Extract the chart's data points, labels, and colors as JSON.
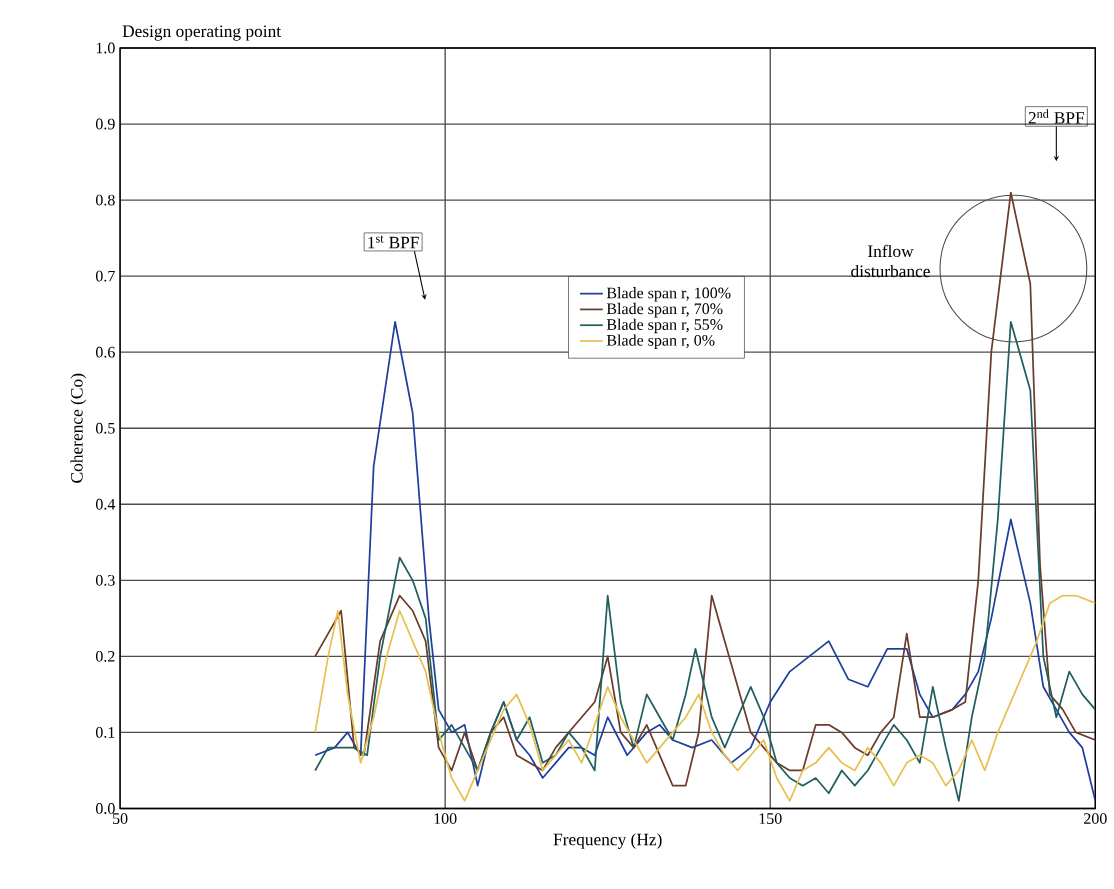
{
  "chart_data": {
    "type": "line",
    "title": "Design operating point",
    "xlabel": "Frequency (Hz)",
    "ylabel": "Coherence (Co)",
    "xlim": [
      50,
      200
    ],
    "xticks": [
      50,
      100,
      150,
      200
    ],
    "ylim": [
      0,
      1
    ],
    "yticks": [
      {
        "value": 0,
        "label": "0.0"
      },
      0.1,
      0.2,
      0.3,
      0.4,
      0.5,
      0.6,
      0.7,
      0.8,
      0.9,
      {
        "value": 1,
        "label": "1.0"
      }
    ],
    "grid": true,
    "legend": "top",
    "line_style": "solid",
    "marker": "none",
    "annotations": [
      "1$^{st}$ BPF",
      "2$^{nd}$ BPF",
      "Inflow disturbance"
    ],
    "series": [
      {
        "name": "Blade span r, 100%",
        "color": "#1f3f9f",
        "x": [
          80,
          83,
          85,
          87,
          89,
          92.3,
          95,
          97.5,
          99,
          101,
          103,
          105,
          107,
          109,
          111,
          113,
          115,
          117,
          119,
          121,
          123,
          125,
          128,
          131,
          133,
          135,
          138,
          141,
          144,
          147,
          150,
          153,
          156,
          159,
          162,
          165,
          168,
          171,
          173,
          175,
          178,
          180,
          182,
          184,
          187,
          190,
          192,
          194,
          196,
          198,
          200
        ],
        "values": [
          0.07,
          0.08,
          0.1,
          0.07,
          0.45,
          0.64,
          0.52,
          0.25,
          0.13,
          0.1,
          0.11,
          0.03,
          0.1,
          0.14,
          0.09,
          0.07,
          0.04,
          0.06,
          0.08,
          0.08,
          0.07,
          0.12,
          0.07,
          0.1,
          0.11,
          0.09,
          0.08,
          0.09,
          0.06,
          0.08,
          0.14,
          0.18,
          0.2,
          0.22,
          0.17,
          0.16,
          0.21,
          0.21,
          0.15,
          0.12,
          0.13,
          0.15,
          0.18,
          0.25,
          0.38,
          0.27,
          0.16,
          0.13,
          0.1,
          0.08,
          0.01
        ]
      },
      {
        "name": "Blade span r, 70%",
        "color": "#6b3b2b",
        "x": [
          80,
          82,
          84,
          86,
          87.5,
          90,
          93,
          95,
          97,
          99,
          101,
          103,
          105,
          107,
          109,
          111,
          113,
          115,
          117,
          119,
          121,
          123,
          125,
          127,
          129,
          131,
          133,
          135,
          137,
          139,
          141,
          143,
          145,
          147,
          149,
          151,
          153,
          155,
          157,
          159,
          161,
          163,
          165,
          167,
          169,
          171,
          173,
          175,
          178,
          180,
          182,
          184,
          187,
          190,
          191.5,
          193,
          195,
          197,
          200
        ],
        "values": [
          0.2,
          0.23,
          0.26,
          0.08,
          0.07,
          0.22,
          0.28,
          0.26,
          0.22,
          0.08,
          0.05,
          0.1,
          0.05,
          0.1,
          0.12,
          0.07,
          0.06,
          0.05,
          0.08,
          0.1,
          0.12,
          0.14,
          0.2,
          0.1,
          0.08,
          0.11,
          0.07,
          0.03,
          0.03,
          0.1,
          0.28,
          0.22,
          0.16,
          0.1,
          0.08,
          0.06,
          0.05,
          0.05,
          0.11,
          0.11,
          0.1,
          0.08,
          0.07,
          0.1,
          0.12,
          0.23,
          0.12,
          0.12,
          0.13,
          0.14,
          0.3,
          0.6,
          0.81,
          0.69,
          0.32,
          0.15,
          0.13,
          0.1,
          0.09
        ]
      },
      {
        "name": "Blade span r, 55%",
        "color": "#1f5f5f",
        "x": [
          80,
          82,
          84,
          86,
          88,
          90,
          93,
          95,
          97,
          99,
          101,
          103,
          105,
          107,
          109,
          111,
          113,
          115,
          117,
          119,
          121,
          123,
          125,
          127,
          129,
          131,
          133,
          135,
          137,
          138.5,
          141,
          143,
          145,
          147,
          149,
          151,
          153,
          155,
          157,
          159,
          161,
          163,
          165,
          167,
          169,
          171,
          173,
          175,
          177,
          179,
          181,
          183,
          185,
          187,
          190,
          192,
          194,
          196,
          198,
          200
        ],
        "values": [
          0.05,
          0.08,
          0.08,
          0.08,
          0.07,
          0.2,
          0.33,
          0.3,
          0.25,
          0.09,
          0.11,
          0.08,
          0.05,
          0.1,
          0.14,
          0.09,
          0.12,
          0.06,
          0.07,
          0.1,
          0.08,
          0.05,
          0.28,
          0.14,
          0.08,
          0.15,
          0.12,
          0.09,
          0.15,
          0.21,
          0.12,
          0.08,
          0.12,
          0.16,
          0.12,
          0.06,
          0.04,
          0.03,
          0.04,
          0.02,
          0.05,
          0.03,
          0.05,
          0.08,
          0.11,
          0.09,
          0.06,
          0.16,
          0.08,
          0.01,
          0.12,
          0.2,
          0.38,
          0.64,
          0.55,
          0.2,
          0.12,
          0.18,
          0.15,
          0.13
        ]
      },
      {
        "name": "Blade span r, 0%",
        "color": "#e8c050",
        "x": [
          80,
          82,
          83.5,
          85,
          87,
          89,
          91,
          93,
          95,
          97,
          99,
          101,
          103,
          105,
          107,
          109,
          111,
          113,
          115,
          117,
          119,
          121,
          123,
          125,
          127,
          129,
          131,
          133,
          135,
          137,
          139,
          141,
          143,
          145,
          147,
          149,
          151,
          153,
          155,
          157,
          159,
          161,
          163,
          165,
          167,
          169,
          171,
          173,
          175,
          177,
          179,
          181,
          183,
          185,
          187,
          189,
          191,
          193,
          195,
          197,
          200
        ],
        "values": [
          0.1,
          0.2,
          0.26,
          0.15,
          0.06,
          0.12,
          0.2,
          0.26,
          0.22,
          0.18,
          0.1,
          0.04,
          0.01,
          0.05,
          0.09,
          0.13,
          0.15,
          0.11,
          0.05,
          0.07,
          0.09,
          0.06,
          0.11,
          0.16,
          0.12,
          0.09,
          0.06,
          0.08,
          0.1,
          0.12,
          0.15,
          0.1,
          0.07,
          0.05,
          0.07,
          0.09,
          0.04,
          0.01,
          0.05,
          0.06,
          0.08,
          0.06,
          0.05,
          0.08,
          0.06,
          0.03,
          0.06,
          0.07,
          0.06,
          0.03,
          0.05,
          0.09,
          0.05,
          0.1,
          0.14,
          0.18,
          0.22,
          0.27,
          0.28,
          0.28,
          0.27
        ]
      }
    ]
  }
}
